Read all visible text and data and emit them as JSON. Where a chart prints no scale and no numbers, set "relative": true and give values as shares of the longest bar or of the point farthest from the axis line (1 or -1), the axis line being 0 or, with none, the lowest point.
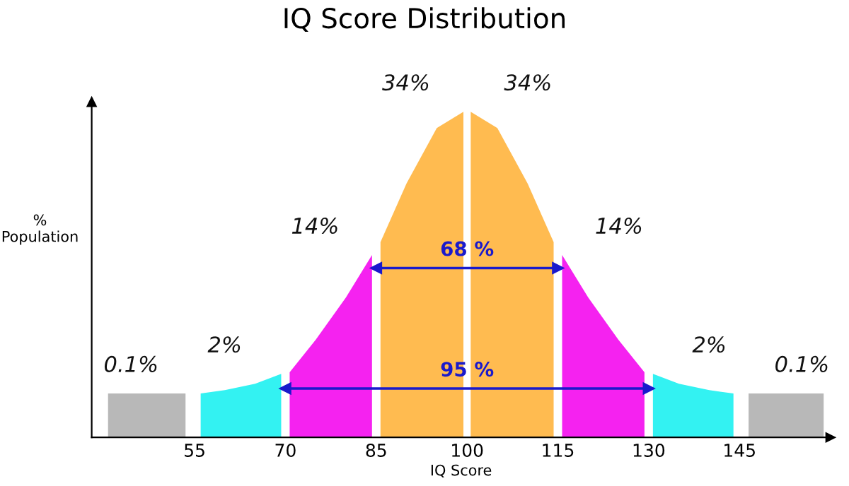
{
  "chart_data": {
    "type": "area",
    "title": "IQ Score Distribution",
    "xlabel": "IQ Score",
    "ylabel": "%\nPopulation",
    "relative": true,
    "tick_labels": "x",
    "xlim": [
      38,
      160
    ],
    "xticks": [
      55,
      70,
      85,
      100,
      115,
      130,
      145
    ],
    "series": [
      {
        "color": "#b8b8b8",
        "x": [
          40.7,
          53.5
        ],
        "values": [
          0.135,
          0.135
        ]
      },
      {
        "color": "#33f2f2",
        "x": [
          56,
          60,
          65,
          69.3
        ],
        "values": [
          0.135,
          0.145,
          0.165,
          0.195
        ]
      },
      {
        "color": "#f522f0",
        "x": [
          70.7,
          75,
          80,
          84.3
        ],
        "values": [
          0.2,
          0.3,
          0.43,
          0.56
        ]
      },
      {
        "color": "#ffbb50",
        "x": [
          85.7,
          90,
          95,
          99.4
        ],
        "values": [
          0.6,
          0.78,
          0.95,
          1.0
        ]
      },
      {
        "color": "#ffbb50",
        "x": [
          100.6,
          105,
          110,
          114.3
        ],
        "values": [
          1.0,
          0.95,
          0.78,
          0.6
        ]
      },
      {
        "color": "#f522f0",
        "x": [
          115.7,
          120,
          125,
          129.3
        ],
        "values": [
          0.56,
          0.43,
          0.3,
          0.2
        ]
      },
      {
        "color": "#33f2f2",
        "x": [
          130.7,
          135,
          140,
          144
        ],
        "values": [
          0.195,
          0.165,
          0.145,
          0.135
        ]
      },
      {
        "color": "#b8b8b8",
        "x": [
          146.5,
          158.9
        ],
        "values": [
          0.135,
          0.135
        ]
      },
      {
        "type": "line",
        "color": "#1a1acc",
        "marker": "triangle",
        "x": [
          85,
          115
        ],
        "values": [
          0.52,
          0.52
        ]
      },
      {
        "type": "line",
        "color": "#1a1acc",
        "marker": "triangle",
        "x": [
          70,
          130
        ],
        "values": [
          0.15,
          0.15
        ]
      }
    ],
    "annotations": [
      "0.1%",
      "2%",
      "14%",
      "34%",
      "34%",
      "14%",
      "2%",
      "0.1%",
      {
        "text": "68 %",
        "x": 100,
        "y": 0.52
      },
      {
        "text": "95 %",
        "x": 100,
        "y": 0.15
      }
    ]
  }
}
